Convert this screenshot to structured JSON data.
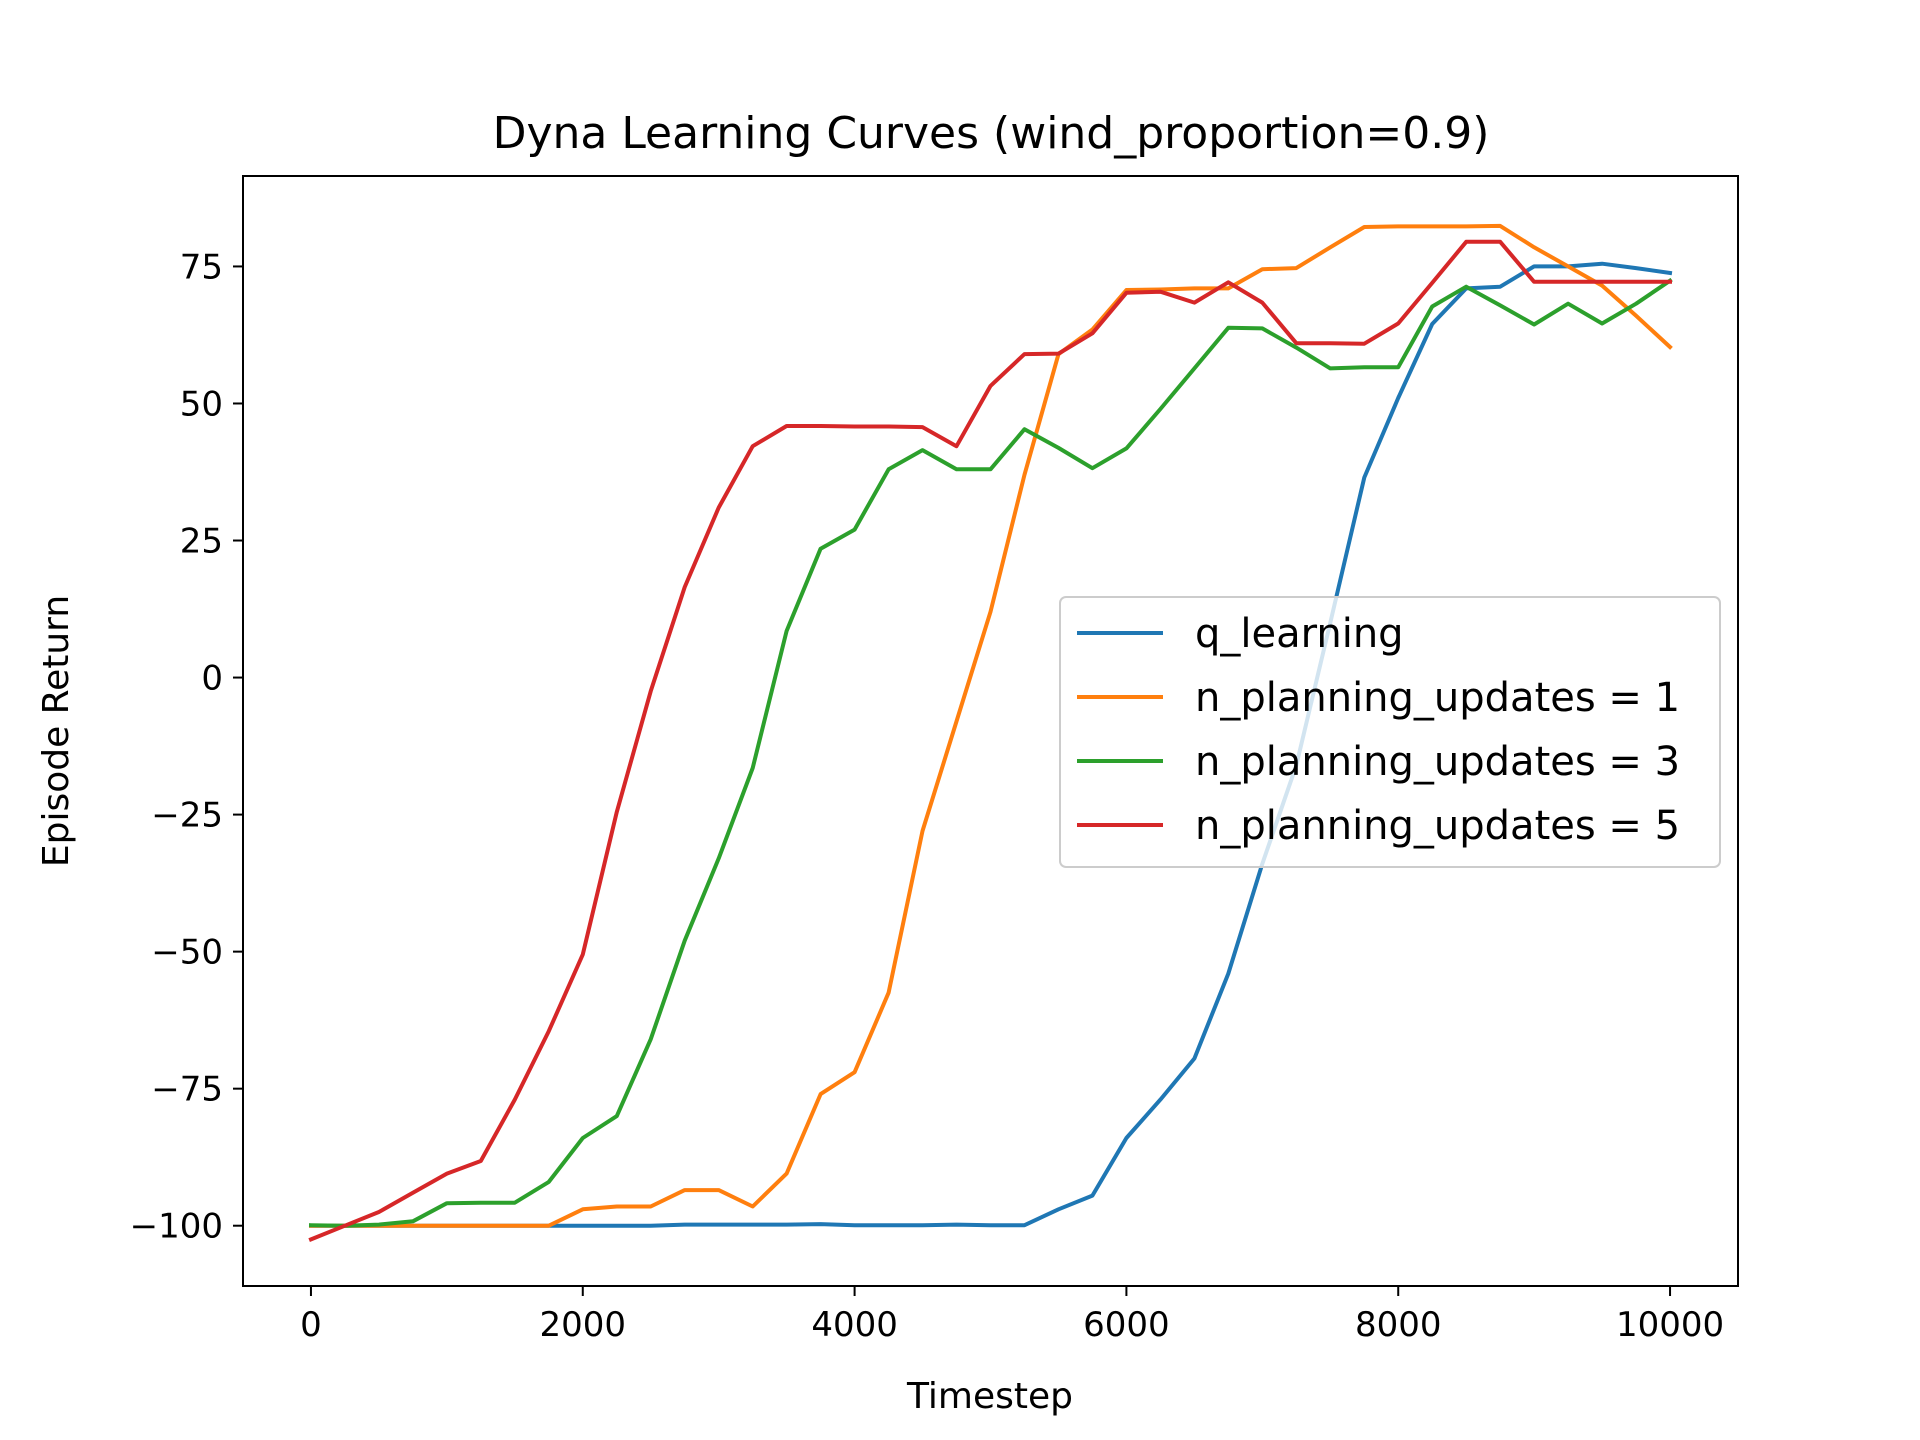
{
  "chart_data": {
    "type": "line",
    "title": "Dyna Learning Curves (wind_proportion=0.9)",
    "xlabel": "Timestep",
    "ylabel": "Episode Return",
    "xlim": [
      -500,
      10500
    ],
    "ylim": [
      -111,
      91.5
    ],
    "xticks": [
      0,
      2000,
      4000,
      6000,
      8000,
      10000
    ],
    "xtick_labels": [
      "0",
      "2000",
      "4000",
      "6000",
      "8000",
      "10000"
    ],
    "yticks": [
      -100,
      -75,
      -50,
      -25,
      0,
      25,
      50,
      75
    ],
    "ytick_labels": [
      "−100",
      "−75",
      "−50",
      "−25",
      "0",
      "25",
      "50",
      "75"
    ],
    "grid": false,
    "legend_position": "center-right",
    "x": [
      0,
      250,
      500,
      750,
      1000,
      1250,
      1500,
      1750,
      2000,
      2250,
      2500,
      2750,
      3000,
      3250,
      3500,
      3750,
      4000,
      4250,
      4500,
      4750,
      5000,
      5250,
      5500,
      5750,
      6000,
      6250,
      6500,
      6750,
      7000,
      7250,
      7500,
      7750,
      8000,
      8250,
      8500,
      8750,
      9000,
      9250,
      9500,
      9750,
      10000
    ],
    "series": [
      {
        "name": "q_learning",
        "color": "#1f77b4",
        "values": [
          -100,
          -100,
          -100,
          -100,
          -100,
          -100,
          -100,
          -100,
          -100,
          -100,
          -100,
          -99.8,
          -99.8,
          -99.8,
          -99.8,
          -99.7,
          -99.9,
          -99.9,
          -99.9,
          -99.8,
          -99.9,
          -99.9,
          -97,
          -94.5,
          -84,
          -77,
          -69.5,
          -54,
          -34,
          -16,
          10,
          36.5,
          51,
          64.5,
          71,
          71.3,
          75,
          75,
          75.5,
          74.7,
          73.8
        ]
      },
      {
        "name": "n_planning_updates = 1",
        "color": "#ff7f0e",
        "values": [
          -100,
          -100,
          -100,
          -100,
          -100,
          -100,
          -100,
          -100,
          -97,
          -96.5,
          -96.5,
          -93.5,
          -93.5,
          -96.5,
          -90.5,
          -76,
          -72,
          -57.5,
          -28,
          -8,
          12,
          37,
          59,
          63.5,
          70.7,
          70.8,
          71,
          71,
          74.5,
          74.7,
          78.5,
          82.2,
          82.3,
          82.3,
          82.3,
          82.4,
          78.5,
          75,
          71.5,
          66,
          60.3
        ]
      },
      {
        "name": "n_planning_updates = 3",
        "color": "#2ca02c",
        "values": [
          -99.9,
          -100,
          -99.8,
          -99.2,
          -95.9,
          -95.8,
          -95.8,
          -92,
          -84,
          -80,
          -66,
          -48,
          -33,
          -16.5,
          8.5,
          23.5,
          27,
          38,
          41.5,
          38,
          38,
          45.3,
          41.9,
          38.2,
          41.8,
          49,
          56.4,
          63.8,
          63.7,
          60.2,
          56.4,
          56.6,
          56.6,
          67.7,
          71.3,
          67.9,
          64.4,
          68.2,
          64.6,
          68.2,
          72.4
        ]
      },
      {
        "name": "n_planning_updates = 5",
        "color": "#d62728",
        "values": [
          -102.5,
          -100,
          -97.5,
          -94,
          -90.5,
          -88.2,
          -77,
          -64.5,
          -50.5,
          -24.5,
          -2.5,
          16.5,
          31,
          42.2,
          45.9,
          45.9,
          45.8,
          45.8,
          45.7,
          42.2,
          53.2,
          59,
          59.1,
          62.8,
          70.2,
          70.4,
          68.4,
          72.1,
          68.4,
          61,
          61,
          60.9,
          64.6,
          72,
          79.5,
          79.5,
          72.2,
          72.2,
          72.2,
          72.2,
          72.2
        ]
      }
    ]
  }
}
